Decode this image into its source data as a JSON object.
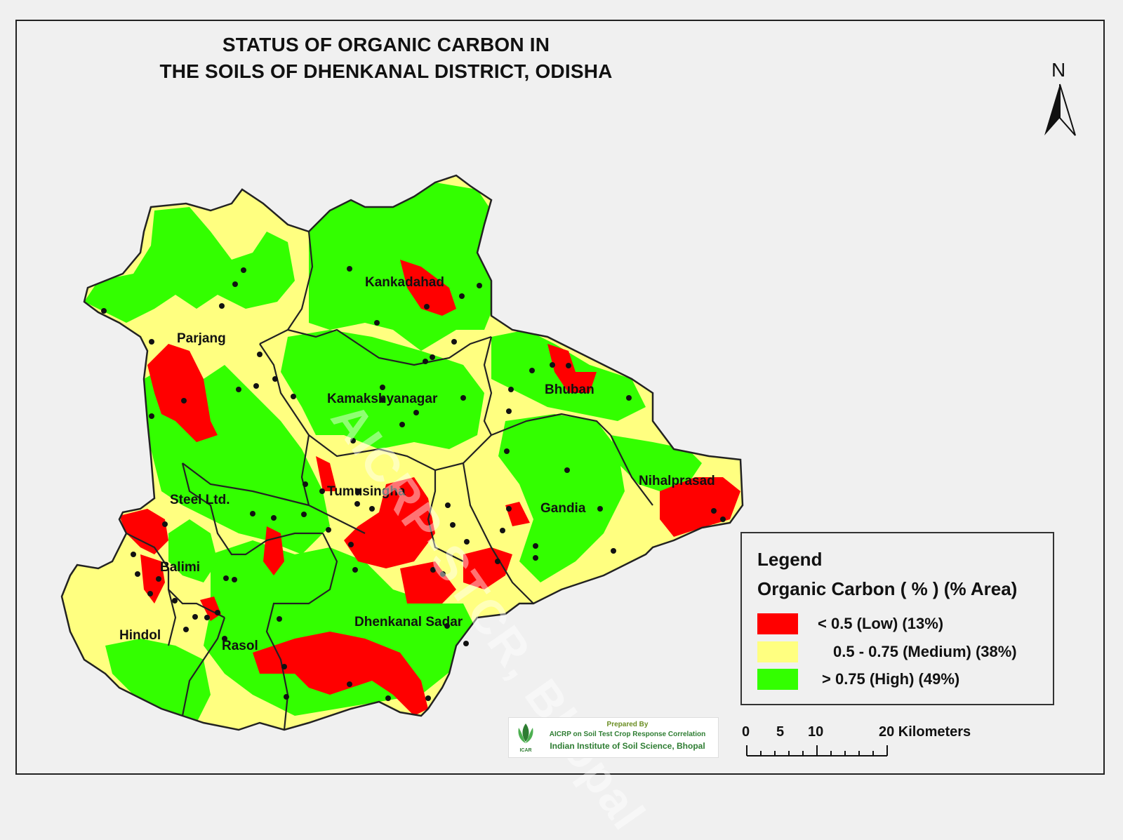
{
  "title": {
    "line1": "STATUS OF ORGANIC CARBON   IN",
    "line2": "THE SOILS OF DHENKANAL DISTRICT, ODISHA"
  },
  "north_arrow": {
    "label": "N",
    "icon": "north-arrow-icon"
  },
  "places": {
    "kankadahad": "Kankadahad",
    "parjang": "Parjang",
    "kamakshyanagar": "Kamakshyanagar",
    "bhuban": "Bhuban",
    "tumusingha": "Tumusingha",
    "steel": "Steel  Ltd.",
    "gandia": "Gandia",
    "nihalprasad": "Nihalprasad",
    "balimi": "Balimi",
    "hindol": "Hindol",
    "rasol": "Rasol",
    "dhenkanal_sadar": "Dhenkanal Sadar"
  },
  "legend": {
    "heading": "Legend",
    "subheading": "Organic Carbon ( % ) (% Area)",
    "classes": [
      {
        "label": "<  0.5 (Low) (13%)",
        "color": "#ff0000",
        "range": "< 0.5",
        "name": "Low",
        "area_pct": 13
      },
      {
        "label": "0.5 - 0.75  (Medium) (38%)",
        "color": "#ffff80",
        "range": "0.5 - 0.75",
        "name": "Medium",
        "area_pct": 38
      },
      {
        "label": "> 0.75 (High)  (49%)",
        "color": "#33ff00",
        "range": "> 0.75",
        "name": "High",
        "area_pct": 49
      }
    ]
  },
  "scale_bar": {
    "labels": [
      "0",
      "5",
      "10",
      "20 Kilometers"
    ],
    "units": "Kilometers"
  },
  "credit": {
    "prepared_by": "Prepared By",
    "aicrp": "AICRP on Soil Test Crop Response Correlation",
    "institute": "Indian Institute of Soil Science, Bhopal",
    "logo_text": "ICAR"
  },
  "watermark": "AICRP-STCR, Bhopal",
  "colors": {
    "background": "#f0f0f0",
    "low": "#ff0000",
    "medium": "#ffff80",
    "high": "#33ff00",
    "boundary": "#222222"
  }
}
